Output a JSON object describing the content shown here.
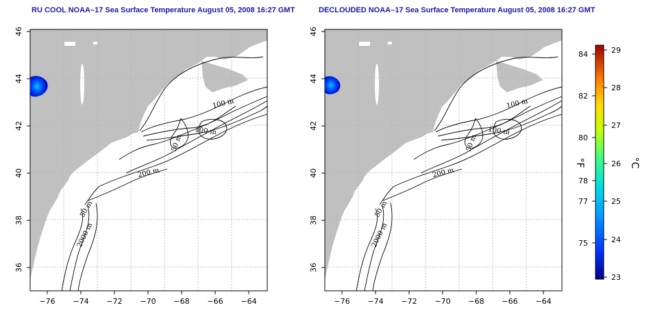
{
  "panels": [
    {
      "id": "left",
      "title": "RU COOL NOAA–17 Sea Surface Temperature August 05, 2008 16:27 GMT",
      "contour_labels": [
        "100 m",
        "100 m",
        "50 m",
        "200 m",
        "50 m",
        "2000 m"
      ]
    },
    {
      "id": "right",
      "title": "DECLOUDED NOAA–17 Sea Surface Temperature August 05, 2008 16:27 GMT",
      "contour_labels": [
        "100 m",
        "100 m",
        "50 m",
        "200 m",
        "50 m",
        "2000 m"
      ]
    }
  ],
  "axes": {
    "lon_ticks": [
      "−76",
      "−74",
      "−72",
      "−70",
      "−68",
      "−66",
      "−64"
    ],
    "lat_ticks": [
      "46",
      "44",
      "42",
      "40",
      "38",
      "36"
    ],
    "lon_range": [
      -77,
      -63
    ],
    "lat_range": [
      35,
      46
    ]
  },
  "colorbar": {
    "fahrenheit_label": "°F",
    "celsius_label": "°C",
    "fahrenheit_ticks": [
      "84",
      "82",
      "80",
      "78",
      "77",
      "75"
    ],
    "celsius_ticks": [
      "29",
      "28",
      "27",
      "26",
      "25",
      "24",
      "23"
    ],
    "range_celsius": [
      23,
      29.2
    ]
  },
  "colors": {
    "land": "#c0c0c0",
    "water": "#ffffff",
    "title": "#1a1aa6",
    "grid": "#b0b0b0"
  }
}
